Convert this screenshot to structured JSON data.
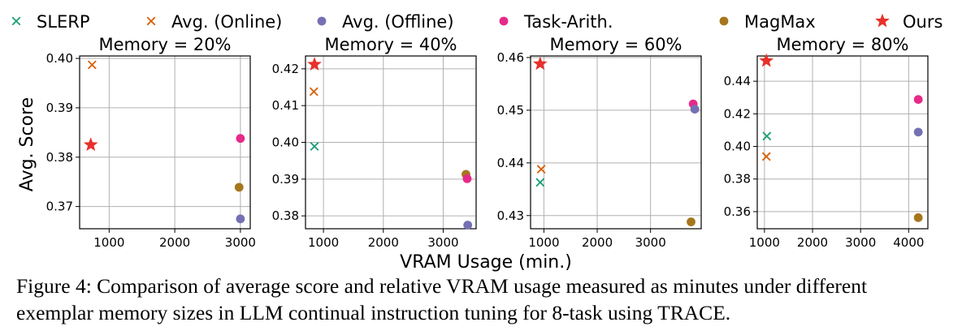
{
  "figure": {
    "ylabel": "Avg. Score",
    "xlabel": "VRAM Usage (min.)",
    "legend": [
      {
        "name": "SLERP",
        "marker": "x",
        "color": "#1b9e77"
      },
      {
        "name": "Avg. (Online)",
        "marker": "x",
        "color": "#d95f02"
      },
      {
        "name": "Avg. (Offline)",
        "marker": "circle",
        "color": "#7570b3"
      },
      {
        "name": "Task-Arith.",
        "marker": "circle",
        "color": "#e7298a"
      },
      {
        "name": "MagMax",
        "marker": "circle",
        "color": "#a6761d"
      },
      {
        "name": "Ours",
        "marker": "star",
        "color": "#e8302a"
      }
    ]
  },
  "chart_data": [
    {
      "type": "scatter",
      "title": "Memory = 20%",
      "xlim": [
        550,
        3150
      ],
      "ylim": [
        0.3655,
        0.4005
      ],
      "xticks": [
        1000,
        2000,
        3000
      ],
      "xtick_labels": [
        "1000",
        "2000",
        "3000"
      ],
      "yticks": [
        0.37,
        0.38,
        0.39,
        0.4
      ],
      "ytick_labels": [
        "0.37",
        "0.38",
        "0.39",
        "0.40"
      ],
      "grid": true,
      "points": [
        {
          "series": "Avg. (Online)",
          "x": 740,
          "y": 0.3987
        },
        {
          "series": "Ours",
          "x": 720,
          "y": 0.3825
        },
        {
          "series": "Task-Arith.",
          "x": 3000,
          "y": 0.3838
        },
        {
          "series": "MagMax",
          "x": 2980,
          "y": 0.3739
        },
        {
          "series": "Avg. (Offline)",
          "x": 3000,
          "y": 0.3675
        }
      ]
    },
    {
      "type": "scatter",
      "title": "Memory = 40%",
      "xlim": [
        700,
        3550
      ],
      "ylim": [
        0.3765,
        0.4235
      ],
      "xticks": [
        1000,
        2000,
        3000
      ],
      "xtick_labels": [
        "1000",
        "2000",
        "3000"
      ],
      "yticks": [
        0.38,
        0.39,
        0.4,
        0.41,
        0.42
      ],
      "ytick_labels": [
        "0.38",
        "0.39",
        "0.40",
        "0.41",
        "0.42"
      ],
      "grid": true,
      "points": [
        {
          "series": "Ours",
          "x": 850,
          "y": 0.4212
        },
        {
          "series": "Avg. (Online)",
          "x": 840,
          "y": 0.4138
        },
        {
          "series": "SLERP",
          "x": 850,
          "y": 0.3989
        },
        {
          "series": "MagMax",
          "x": 3380,
          "y": 0.3913
        },
        {
          "series": "Task-Arith.",
          "x": 3400,
          "y": 0.3901
        },
        {
          "series": "Avg. (Offline)",
          "x": 3410,
          "y": 0.3775
        }
      ]
    },
    {
      "type": "scatter",
      "title": "Memory = 60%",
      "xlim": [
        750,
        3950
      ],
      "ylim": [
        0.4275,
        0.4603
      ],
      "xticks": [
        1000,
        2000,
        3000
      ],
      "xtick_labels": [
        "1000",
        "2000",
        "3000"
      ],
      "yticks": [
        0.43,
        0.44,
        0.45,
        0.46
      ],
      "ytick_labels": [
        "0.43",
        "0.44",
        "0.45",
        "0.46"
      ],
      "grid": true,
      "points": [
        {
          "series": "Ours",
          "x": 930,
          "y": 0.4588
        },
        {
          "series": "Avg. (Online)",
          "x": 950,
          "y": 0.4388
        },
        {
          "series": "SLERP",
          "x": 930,
          "y": 0.4363
        },
        {
          "series": "Task-Arith.",
          "x": 3800,
          "y": 0.4512
        },
        {
          "series": "Avg. (Offline)",
          "x": 3830,
          "y": 0.4502
        },
        {
          "series": "MagMax",
          "x": 3760,
          "y": 0.4288
        }
      ]
    },
    {
      "type": "scatter",
      "title": "Memory = 80%",
      "xlim": [
        850,
        4400
      ],
      "ylim": [
        0.3495,
        0.4555
      ],
      "xticks": [
        1000,
        2000,
        3000,
        4000
      ],
      "xtick_labels": [
        "1000",
        "2000",
        "3000",
        "4000"
      ],
      "yticks": [
        0.36,
        0.38,
        0.4,
        0.42,
        0.44
      ],
      "ytick_labels": [
        "0.36",
        "0.38",
        "0.40",
        "0.42",
        "0.44"
      ],
      "grid": true,
      "points": [
        {
          "series": "Ours",
          "x": 1040,
          "y": 0.4525
        },
        {
          "series": "SLERP",
          "x": 1050,
          "y": 0.4063
        },
        {
          "series": "Avg. (Online)",
          "x": 1040,
          "y": 0.3938
        },
        {
          "series": "Task-Arith.",
          "x": 4200,
          "y": 0.4288
        },
        {
          "series": "Avg. (Offline)",
          "x": 4200,
          "y": 0.4088
        },
        {
          "series": "MagMax",
          "x": 4200,
          "y": 0.3563
        }
      ]
    }
  ],
  "caption": {
    "line1": "Figure 4: Comparison of average score and relative VRAM usage measured as minutes under different",
    "line2": "exemplar memory sizes in LLM continual instruction tuning for 8-task using TRACE."
  }
}
